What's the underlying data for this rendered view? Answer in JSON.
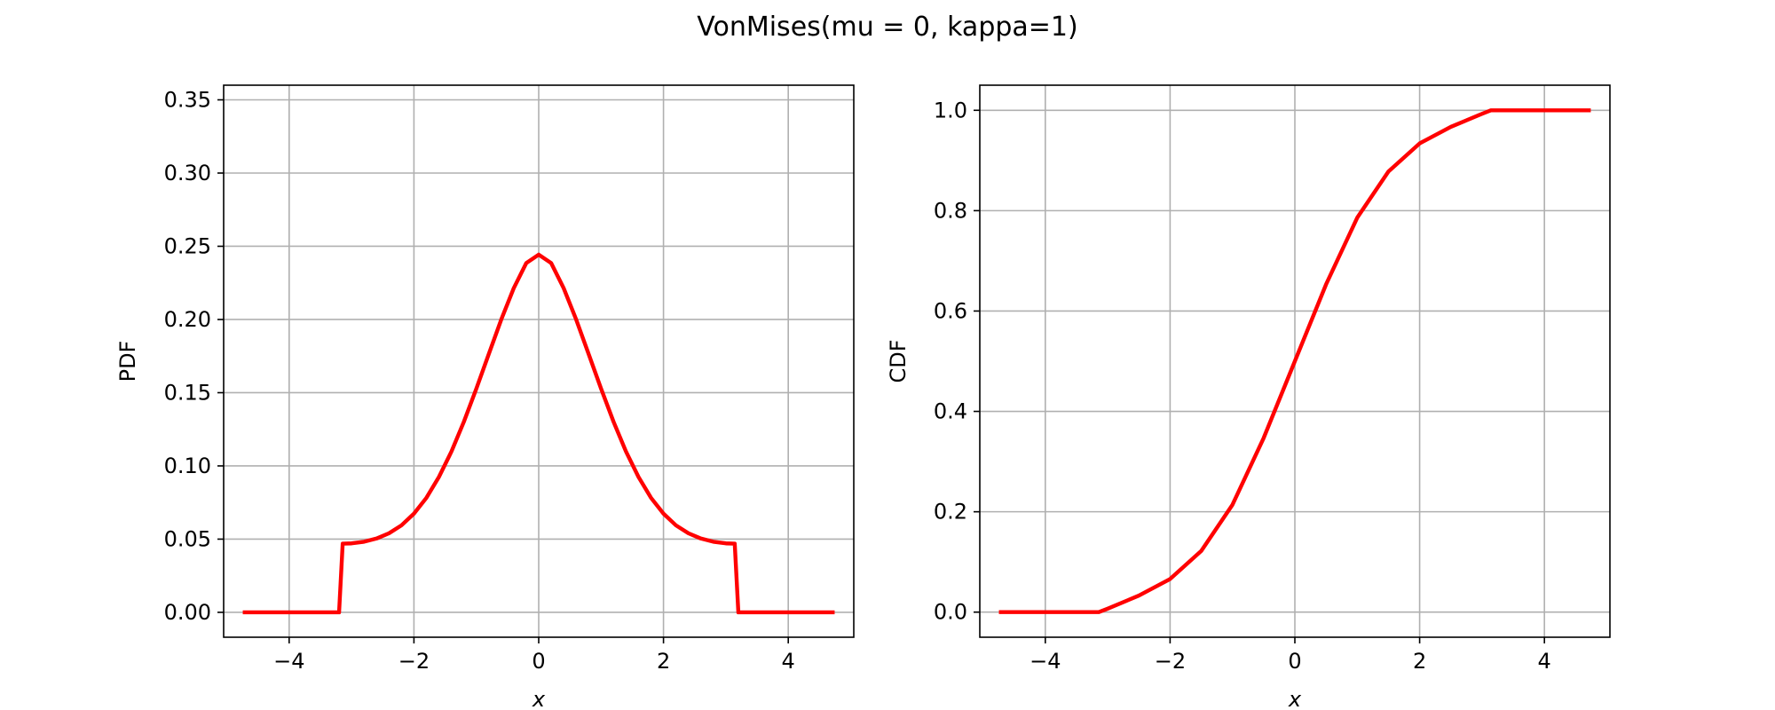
{
  "figure": {
    "title": "VonMises(mu = 0, kappa=1)"
  },
  "chart_data": [
    {
      "type": "line",
      "title": "",
      "xlabel": "x",
      "ylabel": "PDF",
      "xlim": [
        -5.05,
        5.05
      ],
      "ylim": [
        -0.017,
        0.36
      ],
      "xticks": [
        -4,
        -2,
        0,
        2,
        4
      ],
      "xtick_labels": [
        "−4",
        "−2",
        "0",
        "2",
        "4"
      ],
      "yticks": [
        0.0,
        0.05,
        0.1,
        0.15,
        0.2,
        0.25,
        0.3,
        0.35
      ],
      "ytick_labels": [
        "0.00",
        "0.05",
        "0.10",
        "0.15",
        "0.20",
        "0.25",
        "0.30",
        "0.35"
      ],
      "grid": true,
      "series": [
        {
          "color": "#ff0000",
          "x": [
            -4.712,
            -3.2,
            -3.142,
            -3.0,
            -2.8,
            -2.6,
            -2.4,
            -2.2,
            -2.0,
            -1.8,
            -1.6,
            -1.4,
            -1.2,
            -1.0,
            -0.8,
            -0.6,
            -0.4,
            -0.2,
            0.0,
            0.2,
            0.4,
            0.6,
            0.8,
            1.0,
            1.2,
            1.4,
            1.6,
            1.8,
            2.0,
            2.2,
            2.4,
            2.6,
            2.8,
            3.0,
            3.142,
            3.2,
            4.712
          ],
          "y": [
            0.0,
            0.0,
            0.0469,
            0.0471,
            0.0482,
            0.0504,
            0.054,
            0.0594,
            0.0674,
            0.0782,
            0.0924,
            0.1097,
            0.1301,
            0.1527,
            0.1764,
            0.2,
            0.2214,
            0.2385,
            0.2443,
            0.2385,
            0.2214,
            0.2,
            0.1764,
            0.1527,
            0.1301,
            0.1097,
            0.0924,
            0.0782,
            0.0674,
            0.0594,
            0.054,
            0.0504,
            0.0482,
            0.0471,
            0.0469,
            0.0,
            0.0
          ]
        }
      ]
    },
    {
      "type": "line",
      "title": "",
      "xlabel": "x",
      "ylabel": "CDF",
      "xlim": [
        -5.05,
        5.05
      ],
      "ylim": [
        -0.05,
        1.05
      ],
      "xticks": [
        -4,
        -2,
        0,
        2,
        4
      ],
      "xtick_labels": [
        "−4",
        "−2",
        "0",
        "2",
        "4"
      ],
      "yticks": [
        0.0,
        0.2,
        0.4,
        0.6,
        0.8,
        1.0
      ],
      "ytick_labels": [
        "0.0",
        "0.2",
        "0.4",
        "0.6",
        "0.8",
        "1.0"
      ],
      "grid": true,
      "series": [
        {
          "color": "#ff0000",
          "x": [
            -4.712,
            -3.142,
            -3.0,
            -2.5,
            -2.0,
            -1.5,
            -1.0,
            -0.5,
            0.0,
            0.5,
            1.0,
            1.5,
            2.0,
            2.5,
            3.0,
            3.142,
            4.712
          ],
          "y": [
            0.0,
            0.0,
            0.007,
            0.033,
            0.066,
            0.122,
            0.214,
            0.347,
            0.5,
            0.653,
            0.786,
            0.878,
            0.934,
            0.967,
            0.993,
            1.0,
            1.0
          ]
        }
      ]
    }
  ]
}
